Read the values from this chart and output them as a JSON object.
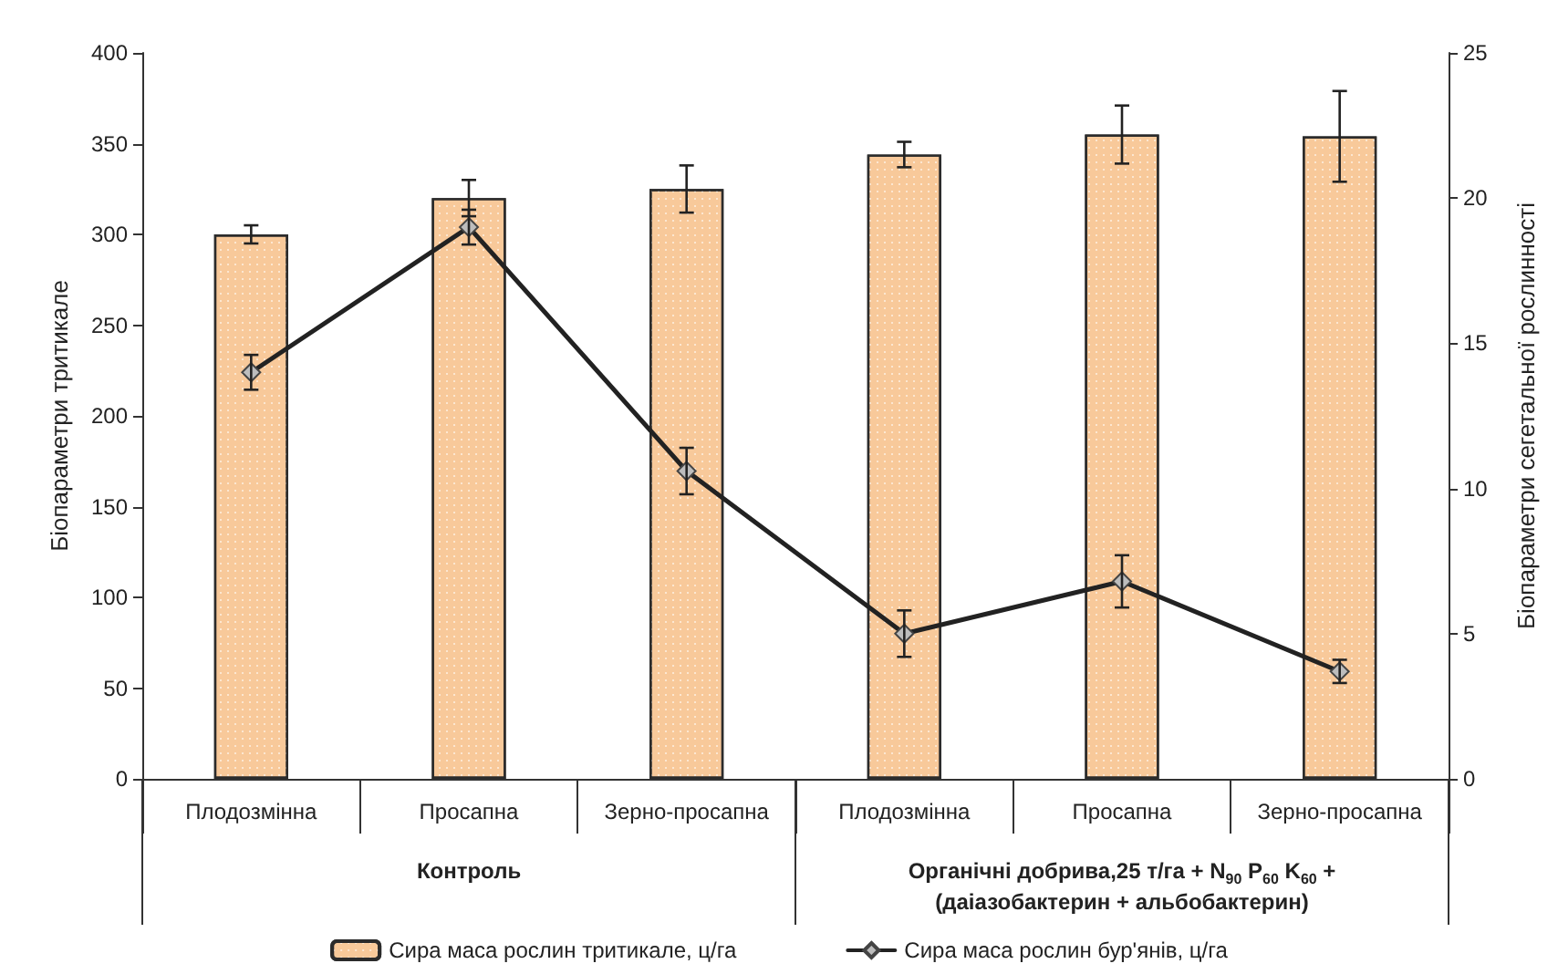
{
  "chart_data": {
    "type": "bar",
    "ylabel": "Біопараметри тритикале",
    "y2label": "Біопараметри сегетальної рослинності",
    "categories": [
      "Плодозмінна",
      "Просапна",
      "Зерно-просапна",
      "Плодозмінна",
      "Просапна",
      "Зерно-просапна"
    ],
    "series": [
      {
        "name": "Сира маса рослин тритикале, ц/га",
        "color": "#f8c99a",
        "values": [
          300,
          320,
          325,
          344,
          355,
          354
        ],
        "errors": [
          5,
          10,
          13,
          7,
          16,
          25
        ]
      },
      {
        "name": "Сира маса рослин бур'янів, ц/га",
        "type": "line",
        "axis": "y2",
        "color": "#222222",
        "marker": "diamond",
        "values": [
          14,
          19,
          10.6,
          5,
          6.8,
          3.7
        ],
        "errors": [
          0.6,
          0.6,
          0.8,
          0.8,
          0.9,
          0.4
        ]
      }
    ],
    "annotations": [
      "Контроль",
      "Органічні добрива,25 т/га + N$_{90}$ P$_{60}$ K$_{60}$ +\n(даіазобактерин + альбобактерин)"
    ],
    "ylim": [
      0,
      400
    ],
    "yticks": [
      0,
      50,
      100,
      150,
      200,
      250,
      300,
      350,
      400
    ],
    "y2lim": [
      0,
      25
    ],
    "y2ticks": [
      0,
      5,
      10,
      15,
      20,
      25
    ],
    "grid": false,
    "legend": "bottom"
  }
}
